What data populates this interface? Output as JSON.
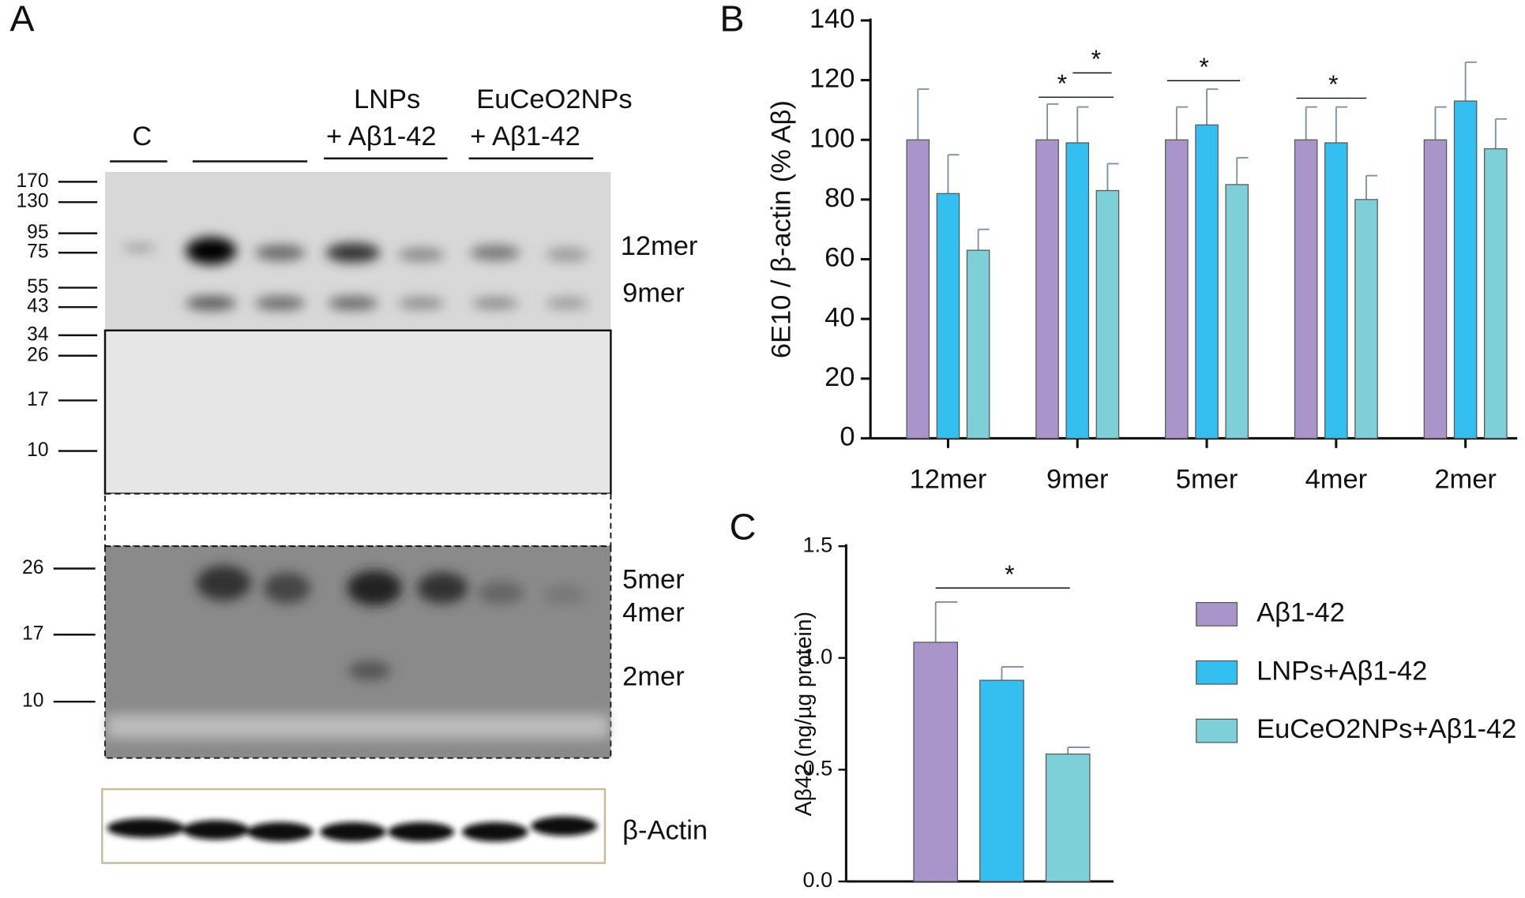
{
  "panels": [
    "A",
    "B",
    "C"
  ],
  "blot": {
    "lanes": [
      "C",
      "LNPs",
      "+ Aβ1-42",
      "EuCeO2NPs",
      "+ Aβ1-42"
    ],
    "markers_top": [
      "170",
      "130",
      "95",
      "75",
      "55",
      "43",
      "34",
      "26",
      "17",
      "10"
    ],
    "markers_bottom": [
      "26",
      "17",
      "10"
    ],
    "bands": [
      "12mer",
      "9mer",
      "5mer",
      "4mer",
      "2mer"
    ],
    "loading": "β-Actin"
  },
  "chart_data": [
    {
      "type": "bar",
      "ylabel": "6E10 / β-actin (% Aβ)",
      "categories": [
        "12mer",
        "9mer",
        "5mer",
        "4mer",
        "2mer"
      ],
      "series": [
        {
          "name": "Aβ1-42",
          "color": "#a995c9",
          "values": [
            100,
            100,
            100,
            100,
            100
          ],
          "errors": [
            17,
            12,
            11,
            11,
            11
          ]
        },
        {
          "name": "LNPs+Aβ1-42",
          "color": "#33bfef",
          "values": [
            82,
            99,
            105,
            99,
            113
          ],
          "errors": [
            13,
            12,
            12,
            12,
            13
          ]
        },
        {
          "name": "EuCeO2NPs+Aβ1-42",
          "color": "#7dcfd8",
          "values": [
            63,
            83,
            85,
            80,
            97
          ],
          "errors": [
            7,
            9,
            9,
            8,
            10
          ]
        }
      ],
      "ylim": [
        0,
        140
      ],
      "yticks": [
        0,
        20,
        40,
        60,
        80,
        100,
        120,
        140
      ],
      "annotations": [
        "*",
        "*",
        "*",
        "*"
      ]
    },
    {
      "type": "bar",
      "ylabel": "Aβ42 (ng/µg protein)",
      "categories": [
        null,
        null,
        null
      ],
      "values": [
        1.07,
        0.9,
        0.57
      ],
      "errors": [
        0.18,
        0.06,
        0.03
      ],
      "colors": [
        "#a995c9",
        "#33bfef",
        "#7dcfd8"
      ],
      "ylim": [
        0,
        1.5
      ],
      "yticks": [
        {
          "value": 0,
          "label": "0.0"
        },
        {
          "value": 0.5,
          "label": "0.5"
        },
        {
          "value": 1,
          "label": "1.0"
        },
        {
          "value": 1.5,
          "label": "1.5"
        }
      ],
      "annotations": [
        "*"
      ]
    }
  ]
}
